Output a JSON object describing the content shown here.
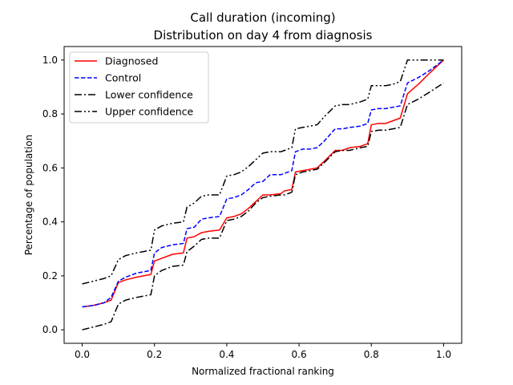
{
  "chart_data": {
    "type": "line",
    "title": "Call duration (incoming)",
    "subtitle": "Distribution on day 4 from diagnosis",
    "xlabel": "Normalized fractional ranking",
    "ylabel": "Percentage of population",
    "xlim": [
      -0.05,
      1.05
    ],
    "ylim": [
      -0.05,
      1.05
    ],
    "xticks": [
      0.0,
      0.2,
      0.4,
      0.6,
      0.8,
      1.0
    ],
    "xtick_labels": [
      "0.0",
      "0.2",
      "0.4",
      "0.6",
      "0.8",
      "1.0"
    ],
    "yticks": [
      0.0,
      0.2,
      0.4,
      0.6,
      0.8,
      1.0
    ],
    "ytick_labels": [
      "0.0",
      "0.2",
      "0.4",
      "0.6",
      "0.8",
      "1.0"
    ],
    "grid": false,
    "legend_position": "top-left",
    "series": [
      {
        "name": "Diagnosed",
        "color": "#ff0000",
        "style": "solid",
        "x": [
          0.0,
          0.03,
          0.06,
          0.08,
          0.1,
          0.12,
          0.15,
          0.17,
          0.19,
          0.2,
          0.22,
          0.25,
          0.28,
          0.29,
          0.31,
          0.33,
          0.35,
          0.38,
          0.4,
          0.42,
          0.44,
          0.46,
          0.48,
          0.5,
          0.52,
          0.55,
          0.56,
          0.58,
          0.59,
          0.61,
          0.63,
          0.65,
          0.67,
          0.7,
          0.72,
          0.74,
          0.77,
          0.79,
          0.8,
          0.82,
          0.84,
          0.86,
          0.88,
          0.9,
          0.93,
          0.96,
          1.0
        ],
        "y": [
          0.085,
          0.09,
          0.1,
          0.11,
          0.175,
          0.185,
          0.195,
          0.2,
          0.205,
          0.255,
          0.265,
          0.28,
          0.285,
          0.34,
          0.345,
          0.36,
          0.365,
          0.37,
          0.415,
          0.42,
          0.43,
          0.45,
          0.475,
          0.5,
          0.5,
          0.505,
          0.515,
          0.52,
          0.585,
          0.59,
          0.595,
          0.6,
          0.625,
          0.665,
          0.665,
          0.675,
          0.68,
          0.69,
          0.76,
          0.765,
          0.765,
          0.775,
          0.785,
          0.875,
          0.91,
          0.95,
          1.0
        ]
      },
      {
        "name": "Control",
        "color": "#0000ff",
        "style": "dashed",
        "x": [
          0.0,
          0.03,
          0.06,
          0.08,
          0.1,
          0.12,
          0.15,
          0.17,
          0.19,
          0.2,
          0.22,
          0.25,
          0.28,
          0.29,
          0.31,
          0.33,
          0.35,
          0.38,
          0.4,
          0.42,
          0.44,
          0.46,
          0.48,
          0.5,
          0.52,
          0.55,
          0.56,
          0.58,
          0.59,
          0.61,
          0.63,
          0.65,
          0.67,
          0.7,
          0.72,
          0.74,
          0.77,
          0.79,
          0.8,
          0.82,
          0.84,
          0.86,
          0.88,
          0.9,
          0.93,
          0.96,
          1.0
        ],
        "y": [
          0.085,
          0.09,
          0.1,
          0.12,
          0.18,
          0.195,
          0.21,
          0.215,
          0.22,
          0.285,
          0.305,
          0.315,
          0.32,
          0.375,
          0.38,
          0.41,
          0.415,
          0.42,
          0.485,
          0.49,
          0.5,
          0.52,
          0.545,
          0.55,
          0.575,
          0.575,
          0.58,
          0.59,
          0.66,
          0.67,
          0.67,
          0.675,
          0.7,
          0.745,
          0.745,
          0.75,
          0.755,
          0.765,
          0.815,
          0.82,
          0.82,
          0.825,
          0.83,
          0.915,
          0.935,
          0.96,
          1.0
        ]
      },
      {
        "name": "Lower confidence",
        "color": "#000000",
        "style": "dashdot",
        "x": [
          0.0,
          0.03,
          0.06,
          0.08,
          0.1,
          0.12,
          0.15,
          0.17,
          0.19,
          0.2,
          0.22,
          0.25,
          0.28,
          0.29,
          0.31,
          0.33,
          0.35,
          0.38,
          0.4,
          0.42,
          0.44,
          0.46,
          0.48,
          0.5,
          0.52,
          0.55,
          0.56,
          0.58,
          0.59,
          0.61,
          0.63,
          0.65,
          0.67,
          0.7,
          0.72,
          0.74,
          0.77,
          0.79,
          0.8,
          0.82,
          0.84,
          0.86,
          0.88,
          0.9,
          0.93,
          0.96,
          1.0
        ],
        "y": [
          0.0,
          0.01,
          0.02,
          0.03,
          0.095,
          0.11,
          0.12,
          0.125,
          0.13,
          0.2,
          0.22,
          0.235,
          0.24,
          0.29,
          0.31,
          0.335,
          0.34,
          0.34,
          0.405,
          0.41,
          0.42,
          0.44,
          0.47,
          0.49,
          0.495,
          0.5,
          0.5,
          0.51,
          0.575,
          0.585,
          0.59,
          0.595,
          0.62,
          0.66,
          0.665,
          0.665,
          0.675,
          0.68,
          0.735,
          0.74,
          0.74,
          0.745,
          0.75,
          0.835,
          0.855,
          0.88,
          0.915
        ]
      },
      {
        "name": "Upper confidence",
        "color": "#000000",
        "style": "dashdotdot",
        "x": [
          0.0,
          0.03,
          0.06,
          0.08,
          0.1,
          0.12,
          0.15,
          0.17,
          0.19,
          0.2,
          0.22,
          0.25,
          0.28,
          0.29,
          0.31,
          0.33,
          0.35,
          0.38,
          0.4,
          0.42,
          0.44,
          0.46,
          0.48,
          0.5,
          0.52,
          0.55,
          0.56,
          0.58,
          0.59,
          0.61,
          0.63,
          0.65,
          0.67,
          0.7,
          0.72,
          0.74,
          0.77,
          0.79,
          0.8,
          0.82,
          0.84,
          0.86,
          0.88,
          0.9,
          0.93,
          0.96,
          1.0
        ],
        "y": [
          0.17,
          0.18,
          0.19,
          0.2,
          0.26,
          0.275,
          0.285,
          0.29,
          0.295,
          0.37,
          0.385,
          0.395,
          0.4,
          0.455,
          0.47,
          0.495,
          0.5,
          0.5,
          0.57,
          0.575,
          0.585,
          0.605,
          0.63,
          0.655,
          0.66,
          0.66,
          0.665,
          0.675,
          0.745,
          0.75,
          0.755,
          0.76,
          0.79,
          0.83,
          0.835,
          0.835,
          0.845,
          0.855,
          0.905,
          0.905,
          0.905,
          0.91,
          0.92,
          1.0,
          1.0,
          1.0,
          1.0
        ]
      }
    ]
  }
}
